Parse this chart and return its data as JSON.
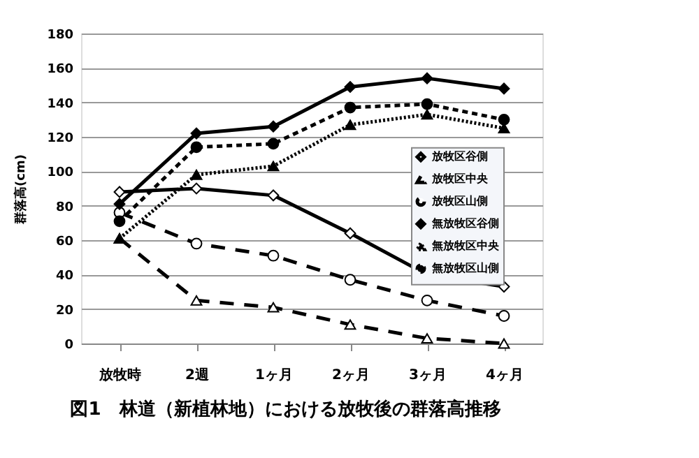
{
  "chart_data": {
    "type": "line",
    "title": "図1　林道（新植林地）における放牧後の群落高推移",
    "ylabel": "群落高(cm)",
    "categories": [
      "放牧時",
      "2週",
      "1ヶ月",
      "2ヶ月",
      "3ヶ月",
      "4ヶ月"
    ],
    "ylim": [
      0,
      180
    ],
    "yticks": [
      0,
      20,
      40,
      60,
      80,
      100,
      120,
      140,
      160,
      180
    ],
    "grid": "y",
    "legend": "right",
    "series": [
      {
        "name": "放牧区谷側",
        "color": "#000000",
        "marker": "diamond",
        "line_style": "solid",
        "values": [
          88,
          90,
          86,
          64,
          40,
          33
        ]
      },
      {
        "name": "放牧区中央",
        "color": "#000000",
        "marker": "triangle",
        "line_style": "dashed",
        "values": [
          61,
          25,
          21,
          11,
          3,
          0
        ]
      },
      {
        "name": "放牧区山側",
        "color": "#000000",
        "marker": "circle",
        "line_style": "dashed",
        "values": [
          76,
          58,
          51,
          37,
          25,
          16
        ]
      },
      {
        "name": "無放牧区谷側",
        "color": "#000000",
        "marker": "diamond",
        "line_style": "solid",
        "values": [
          81,
          122,
          126,
          149,
          154,
          148
        ]
      },
      {
        "name": "無放牧区中央",
        "color": "#000000",
        "marker": "triangle",
        "line_style": "dotted",
        "values": [
          61,
          98,
          103,
          127,
          133,
          125
        ]
      },
      {
        "name": "無放牧区山側",
        "color": "#000000",
        "marker": "circle",
        "line_style": "dashed",
        "values": [
          71,
          114,
          116,
          137,
          139,
          130
        ]
      }
    ]
  }
}
